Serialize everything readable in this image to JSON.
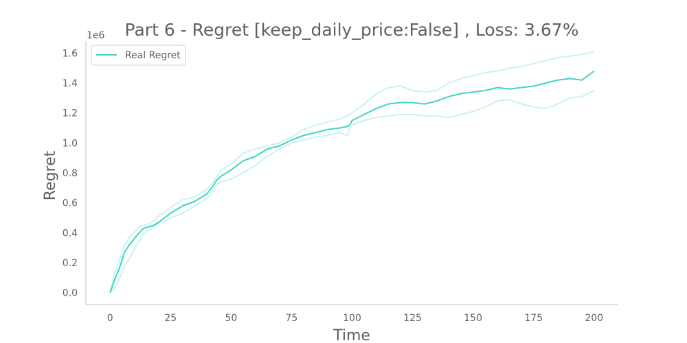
{
  "chart_data": {
    "type": "line",
    "title": "Part 6 - Regret [keep_daily_price:False] , Loss: 3.67%",
    "xlabel": "Time",
    "ylabel": "Regret",
    "y_offset_label": "1e6",
    "xlim": [
      -10,
      210
    ],
    "ylim": [
      -0.08,
      1.68
    ],
    "x_ticks": [
      0,
      25,
      50,
      75,
      100,
      125,
      150,
      175,
      200
    ],
    "x_tick_labels": [
      "0",
      "25",
      "50",
      "75",
      "100",
      "125",
      "150",
      "175",
      "200"
    ],
    "y_ticks": [
      0.0,
      0.2,
      0.4,
      0.6,
      0.8,
      1.0,
      1.2,
      1.4,
      1.6
    ],
    "y_tick_labels": [
      "0.0",
      "0.2",
      "0.4",
      "0.6",
      "0.8",
      "1.0",
      "1.2",
      "1.4",
      "1.6"
    ],
    "grid": false,
    "legend": {
      "position": "top-left",
      "entries": [
        "Real Regret"
      ]
    },
    "colors": {
      "main": "#3fd4c4",
      "band": "#c8f3ef",
      "axis": "#cccccc",
      "text": "#606060"
    },
    "x": [
      0,
      2,
      4,
      6,
      8,
      10,
      12,
      14,
      16,
      18,
      20,
      25,
      30,
      35,
      40,
      42,
      44,
      46,
      50,
      55,
      60,
      65,
      70,
      75,
      80,
      85,
      90,
      95,
      98,
      99,
      100,
      105,
      110,
      115,
      120,
      125,
      130,
      135,
      140,
      145,
      150,
      155,
      160,
      165,
      170,
      175,
      180,
      185,
      190,
      195,
      200
    ],
    "series": [
      {
        "name": "Real Regret",
        "values": [
          0.0,
          0.09,
          0.17,
          0.27,
          0.32,
          0.36,
          0.4,
          0.43,
          0.44,
          0.45,
          0.47,
          0.53,
          0.58,
          0.61,
          0.66,
          0.7,
          0.75,
          0.78,
          0.82,
          0.88,
          0.91,
          0.96,
          0.98,
          1.02,
          1.05,
          1.07,
          1.09,
          1.1,
          1.11,
          1.12,
          1.15,
          1.19,
          1.23,
          1.26,
          1.27,
          1.27,
          1.26,
          1.28,
          1.31,
          1.33,
          1.34,
          1.35,
          1.37,
          1.36,
          1.37,
          1.38,
          1.4,
          1.42,
          1.43,
          1.42,
          1.48
        ]
      },
      {
        "name": "",
        "values": [
          0.0,
          0.14,
          0.22,
          0.32,
          0.37,
          0.4,
          0.44,
          0.45,
          0.46,
          0.48,
          0.51,
          0.57,
          0.62,
          0.64,
          0.69,
          0.73,
          0.77,
          0.82,
          0.86,
          0.93,
          0.96,
          0.98,
          1.0,
          1.04,
          1.09,
          1.12,
          1.14,
          1.16,
          1.18,
          1.19,
          1.2,
          1.26,
          1.33,
          1.37,
          1.38,
          1.35,
          1.34,
          1.35,
          1.4,
          1.43,
          1.45,
          1.47,
          1.48,
          1.5,
          1.51,
          1.53,
          1.55,
          1.57,
          1.58,
          1.59,
          1.61
        ]
      },
      {
        "name": "",
        "values": [
          0.0,
          0.03,
          0.1,
          0.18,
          0.23,
          0.29,
          0.34,
          0.4,
          0.42,
          0.44,
          0.46,
          0.5,
          0.53,
          0.58,
          0.63,
          0.67,
          0.72,
          0.74,
          0.76,
          0.8,
          0.85,
          0.91,
          0.96,
          1.0,
          1.02,
          1.04,
          1.05,
          1.07,
          1.05,
          1.1,
          1.12,
          1.15,
          1.17,
          1.18,
          1.19,
          1.19,
          1.18,
          1.18,
          1.17,
          1.19,
          1.21,
          1.24,
          1.28,
          1.29,
          1.26,
          1.24,
          1.23,
          1.26,
          1.3,
          1.31,
          1.35
        ]
      }
    ]
  }
}
